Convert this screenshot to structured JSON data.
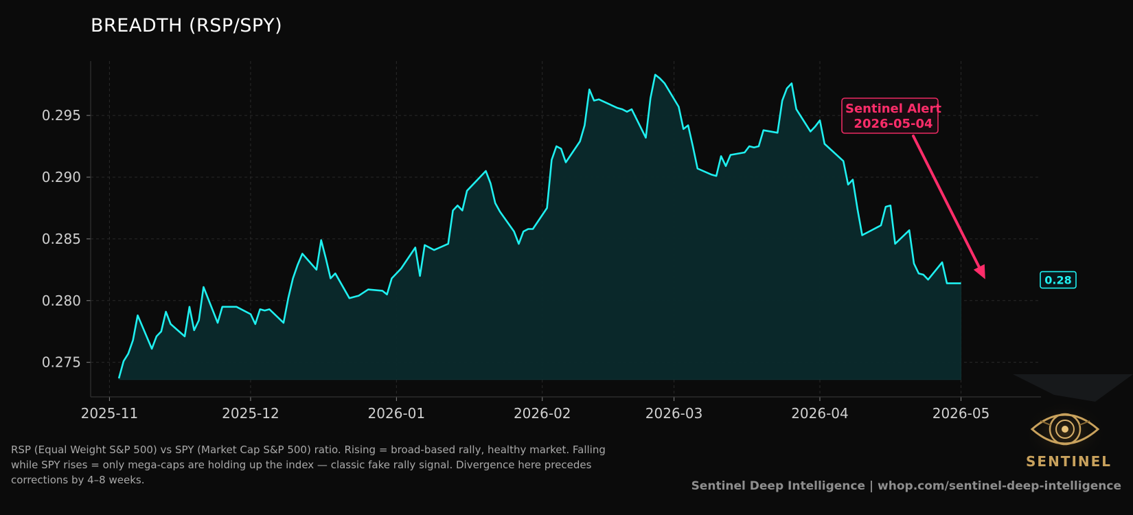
{
  "title": "BREADTH (RSP/SPY)",
  "caption": "RSP (Equal Weight S&P 500) vs SPY (Market Cap S&P 500) ratio. Rising = broad-based rally, healthy market. Falling while SPY rises = only mega-caps are holding up the index — classic fake rally signal. Divergence here precedes corrections by 4–8 weeks.",
  "footer": "Sentinel Deep Intelligence  |  whop.com/sentinel-deep-intelligence",
  "logo_text": "SENTINEL",
  "colors": {
    "line": "#1ff0f0",
    "fill": "#0a2a2c",
    "alert": "#ff2d6a",
    "background": "#0b0b0b",
    "logo": "#c9a25d"
  },
  "chart_data": {
    "type": "area",
    "title": "BREADTH (RSP/SPY)",
    "xlabel": "",
    "ylabel": "",
    "x_ticks": [
      "2025-11",
      "2025-12",
      "2026-01",
      "2026-02",
      "2026-03",
      "2026-04",
      "2026-05"
    ],
    "y_ticks": [
      "0.275",
      "0.280",
      "0.285",
      "0.290",
      "0.295"
    ],
    "xlim": [
      "2025-10-28",
      "2026-05-18"
    ],
    "ylim": [
      0.2722,
      0.2994
    ],
    "grid": true,
    "series": [
      {
        "x": [
          "2025-11-03",
          "2025-11-04",
          "2025-11-05",
          "2025-11-06",
          "2025-11-07",
          "2025-11-10",
          "2025-11-11",
          "2025-11-12",
          "2025-11-13",
          "2025-11-14",
          "2025-11-17",
          "2025-11-18",
          "2025-11-19",
          "2025-11-20",
          "2025-11-21",
          "2025-11-24",
          "2025-11-25",
          "2025-11-26",
          "2025-11-28",
          "2025-12-01",
          "2025-12-02",
          "2025-12-03",
          "2025-12-04",
          "2025-12-05",
          "2025-12-08",
          "2025-12-09",
          "2025-12-10",
          "2025-12-11",
          "2025-12-12",
          "2025-12-15",
          "2025-12-16",
          "2025-12-17",
          "2025-12-18",
          "2025-12-19",
          "2025-12-22",
          "2025-12-23",
          "2025-12-24",
          "2025-12-26",
          "2025-12-29",
          "2025-12-30",
          "2025-12-31",
          "2026-01-02",
          "2026-01-05",
          "2026-01-06",
          "2026-01-07",
          "2026-01-08",
          "2026-01-09",
          "2026-01-12",
          "2026-01-13",
          "2026-01-14",
          "2026-01-15",
          "2026-01-16",
          "2026-01-20",
          "2026-01-21",
          "2026-01-22",
          "2026-01-23",
          "2026-01-26",
          "2026-01-27",
          "2026-01-28",
          "2026-01-29",
          "2026-01-30",
          "2026-02-02",
          "2026-02-03",
          "2026-02-04",
          "2026-02-05",
          "2026-02-06",
          "2026-02-09",
          "2026-02-10",
          "2026-02-11",
          "2026-02-12",
          "2026-02-13",
          "2026-02-17",
          "2026-02-18",
          "2026-02-19",
          "2026-02-20",
          "2026-02-23",
          "2026-02-24",
          "2026-02-25",
          "2026-02-26",
          "2026-02-27",
          "2026-03-02",
          "2026-03-03",
          "2026-03-04",
          "2026-03-05",
          "2026-03-06",
          "2026-03-09",
          "2026-03-10",
          "2026-03-11",
          "2026-03-12",
          "2026-03-13",
          "2026-03-16",
          "2026-03-17",
          "2026-03-18",
          "2026-03-19",
          "2026-03-20",
          "2026-03-23",
          "2026-03-24",
          "2026-03-25",
          "2026-03-26",
          "2026-03-27",
          "2026-03-30",
          "2026-03-31",
          "2026-04-01",
          "2026-04-02",
          "2026-04-06",
          "2026-04-07",
          "2026-04-08",
          "2026-04-09",
          "2026-04-10",
          "2026-04-13",
          "2026-04-14",
          "2026-04-15",
          "2026-04-16",
          "2026-04-17",
          "2026-04-20",
          "2026-04-21",
          "2026-04-22",
          "2026-04-23",
          "2026-04-24",
          "2026-04-27",
          "2026-04-28",
          "2026-04-29",
          "2026-04-30",
          "2026-05-01"
        ],
        "y": [
          0.2737,
          0.2751,
          0.2757,
          0.2768,
          0.2788,
          0.2761,
          0.2771,
          0.2775,
          0.2791,
          0.2781,
          0.2771,
          0.2795,
          0.2776,
          0.2784,
          0.2811,
          0.2782,
          0.2795,
          0.2795,
          0.2795,
          0.2789,
          0.2781,
          0.2793,
          0.2792,
          0.2793,
          0.2782,
          0.2802,
          0.2818,
          0.2829,
          0.2838,
          0.2825,
          0.2849,
          0.2834,
          0.2818,
          0.2822,
          0.2802,
          0.2803,
          0.2804,
          0.2809,
          0.2808,
          0.2805,
          0.2818,
          0.2826,
          0.2843,
          0.282,
          0.2845,
          0.2843,
          0.2841,
          0.2846,
          0.2873,
          0.2877,
          0.2873,
          0.2889,
          0.2905,
          0.2895,
          0.2879,
          0.2872,
          0.2856,
          0.2846,
          0.2856,
          0.2858,
          0.2858,
          0.2875,
          0.2914,
          0.2925,
          0.2923,
          0.2912,
          0.2929,
          0.2942,
          0.2971,
          0.2962,
          0.2963,
          0.2956,
          0.2955,
          0.2953,
          0.2955,
          0.2932,
          0.2964,
          0.2983,
          0.298,
          0.2976,
          0.2957,
          0.2939,
          0.2942,
          0.2925,
          0.2907,
          0.2902,
          0.2901,
          0.2917,
          0.2909,
          0.2918,
          0.292,
          0.2925,
          0.2924,
          0.2925,
          0.2938,
          0.2936,
          0.2962,
          0.2972,
          0.2976,
          0.2955,
          0.2937,
          0.2941,
          0.2946,
          0.2927,
          0.2913,
          0.2894,
          0.2898,
          0.2874,
          0.2853,
          0.2859,
          0.2861,
          0.2876,
          0.2877,
          0.2846,
          0.2857,
          0.283,
          0.2822,
          0.2821,
          0.2817,
          0.2831,
          0.2814,
          0.2814,
          0.2814,
          0.2814
        ]
      }
    ],
    "baseline": 0.2736,
    "annotation": {
      "text_line1": "Sentinel Alert",
      "text_line2": "2026-05-04",
      "date": "2026-05-04",
      "value": 0.2817
    },
    "last_value_label": "0.28"
  }
}
